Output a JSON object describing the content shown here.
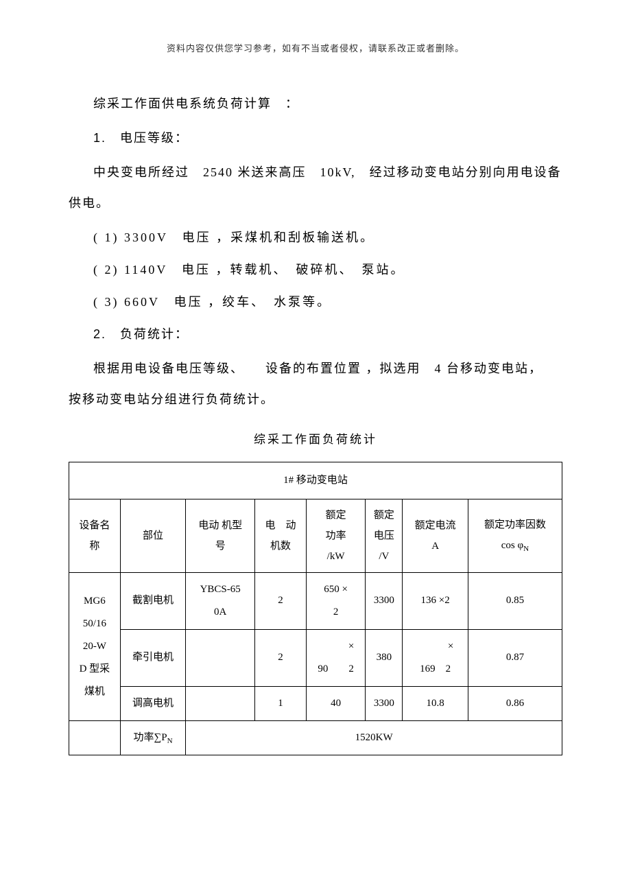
{
  "header_note": "资料内容仅供您学习参考，如有不当或者侵权，请联系改正或者删除。",
  "title_line": "综采工作面供电系统负荷计算　：",
  "section1": {
    "num": "1.",
    "label": "电压等级：",
    "intro": "中央变电所经过　2540 米送来高压　10kV,　经过移动变电站分别向用电设备供电。",
    "items": [
      "( 1) 3300V　电压 ，采煤机和刮板输送机。",
      "( 2) 1140V　电压 ，转载机、　破碎机、　泵站。",
      "( 3) 660V　电压 ，绞车、　水泵等。"
    ]
  },
  "section2": {
    "num": "2.",
    "label": "负荷统计：",
    "intro": "根据用电设备电压等级、　　设备的布置位置 ，拟选用　4 台移动变电站，　按移动变电站分组进行负荷统计。"
  },
  "table": {
    "title": "综采工作面负荷统计",
    "station_header": "1# 移动变电站",
    "columns": [
      "设备名称",
      "部位",
      "电动 机型号",
      "电　动机数",
      "额定功率/kW",
      "额定电压/V",
      "额定电流A",
      "额定功率因数cos φN"
    ],
    "rows": [
      {
        "equip_name": "MG650/1620-WD 型采煤机",
        "part": "截割电机",
        "model": "YBCS-650A",
        "count": "2",
        "power": "650 × 2",
        "voltage": "3300",
        "current": "136 ×2",
        "cosphi": "0.85"
      },
      {
        "part": "牵引电机",
        "model": "",
        "count": "2",
        "power": "90 × 2",
        "voltage": "380",
        "current": "169 × 2",
        "cosphi": "0.87"
      },
      {
        "part": "调高电机",
        "model": "",
        "count": "1",
        "power": "40",
        "voltage": "3300",
        "current": "10.8",
        "cosphi": "0.86"
      }
    ],
    "total_label": "功率∑PN",
    "total_value": "1520KW"
  },
  "styling": {
    "background_color": "#ffffff",
    "text_color": "#000000",
    "border_color": "#000000",
    "body_font_size": 18,
    "table_font_size": 15,
    "header_note_font_size": 13,
    "line_height": 2.5
  }
}
